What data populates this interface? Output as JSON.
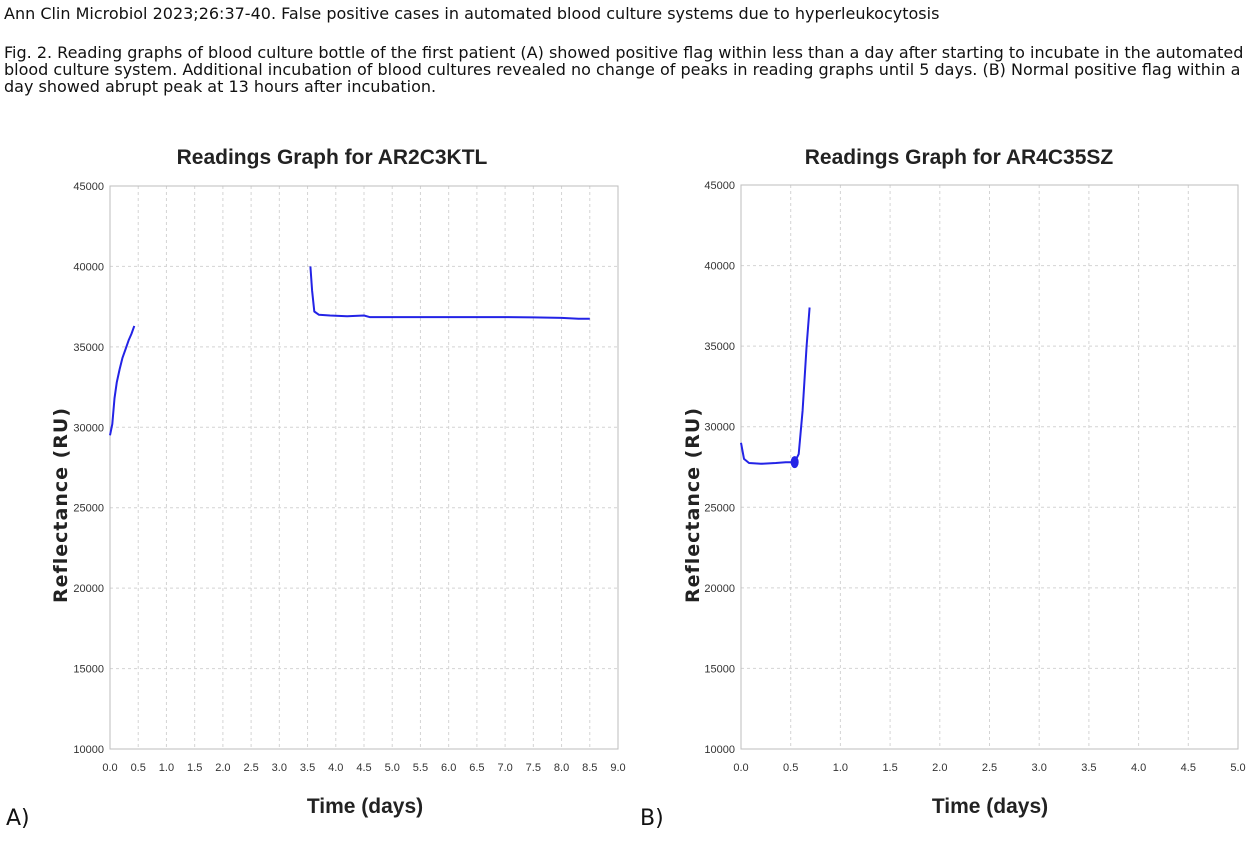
{
  "citation": "Ann Clin Microbiol 2023;26:37-40. False positive cases in automated blood culture systems due to hyperleukocytosis",
  "caption": "Fig. 2. Reading graphs of blood culture bottle of the first patient (A) showed positive flag within less than a day after starting to incubate in the automated blood culture system. Additional incubation of blood cultures revealed no change of peaks in reading graphs until 5 days. (B) Normal positive flag within a day showed abrupt peak at 13 hours after incubation.",
  "panel_labels": {
    "a": "A)",
    "b": "B)"
  },
  "line_color": "#2323e6",
  "chart_data": [
    {
      "type": "line",
      "title": "Readings Graph for AR2C3KTL",
      "xlabel": "Time (days)",
      "ylabel": "Reflectance (RU)",
      "xlim": [
        0,
        9
      ],
      "ylim": [
        10000,
        45000
      ],
      "x_ticks": [
        "0.0",
        "0.5",
        "1.0",
        "1.5",
        "2.0",
        "2.5",
        "3.0",
        "3.5",
        "4.0",
        "4.5",
        "5.0",
        "5.5",
        "6.0",
        "6.5",
        "7.0",
        "7.5",
        "8.0",
        "8.5",
        "9.0"
      ],
      "y_ticks": [
        "45000",
        "40000",
        "35000",
        "30000",
        "25000",
        "20000",
        "15000",
        "10000"
      ],
      "grid": true,
      "series": [
        {
          "segments": [
            [
              [
                0.0,
                29500
              ],
              [
                0.04,
                30200
              ],
              [
                0.08,
                31800
              ],
              [
                0.12,
                32800
              ],
              [
                0.17,
                33600
              ],
              [
                0.22,
                34300
              ],
              [
                0.28,
                34900
              ],
              [
                0.33,
                35400
              ],
              [
                0.38,
                35800
              ],
              [
                0.43,
                36300
              ]
            ],
            [
              [
                3.55,
                40000
              ],
              [
                3.58,
                38500
              ],
              [
                3.62,
                37200
              ],
              [
                3.7,
                37000
              ],
              [
                3.9,
                36950
              ],
              [
                4.2,
                36900
              ],
              [
                4.5,
                36950
              ],
              [
                4.6,
                36850
              ],
              [
                5.0,
                36850
              ],
              [
                6.0,
                36850
              ],
              [
                7.0,
                36850
              ],
              [
                7.5,
                36830
              ],
              [
                8.0,
                36800
              ],
              [
                8.3,
                36750
              ],
              [
                8.5,
                36750
              ]
            ]
          ]
        }
      ]
    },
    {
      "type": "line",
      "title": "Readings Graph for AR4C35SZ",
      "xlabel": "Time (days)",
      "ylabel": "Reflectance (RU)",
      "xlim": [
        0,
        5
      ],
      "ylim": [
        10000,
        45000
      ],
      "x_ticks": [
        "0.0",
        "0.5",
        "1.0",
        "1.5",
        "2.0",
        "2.5",
        "3.0",
        "3.5",
        "4.0",
        "4.5",
        "5.0"
      ],
      "y_ticks": [
        "45000",
        "40000",
        "35000",
        "30000",
        "25000",
        "20000",
        "15000",
        "10000"
      ],
      "grid": true,
      "flag_point": [
        0.54,
        27800
      ],
      "series": [
        {
          "segments": [
            [
              [
                0.0,
                29000
              ],
              [
                0.03,
                28000
              ],
              [
                0.08,
                27750
              ],
              [
                0.2,
                27700
              ],
              [
                0.35,
                27750
              ],
              [
                0.45,
                27800
              ],
              [
                0.54,
                27800
              ],
              [
                0.58,
                28300
              ],
              [
                0.62,
                31000
              ],
              [
                0.66,
                35000
              ],
              [
                0.69,
                37400
              ]
            ]
          ]
        }
      ]
    }
  ]
}
